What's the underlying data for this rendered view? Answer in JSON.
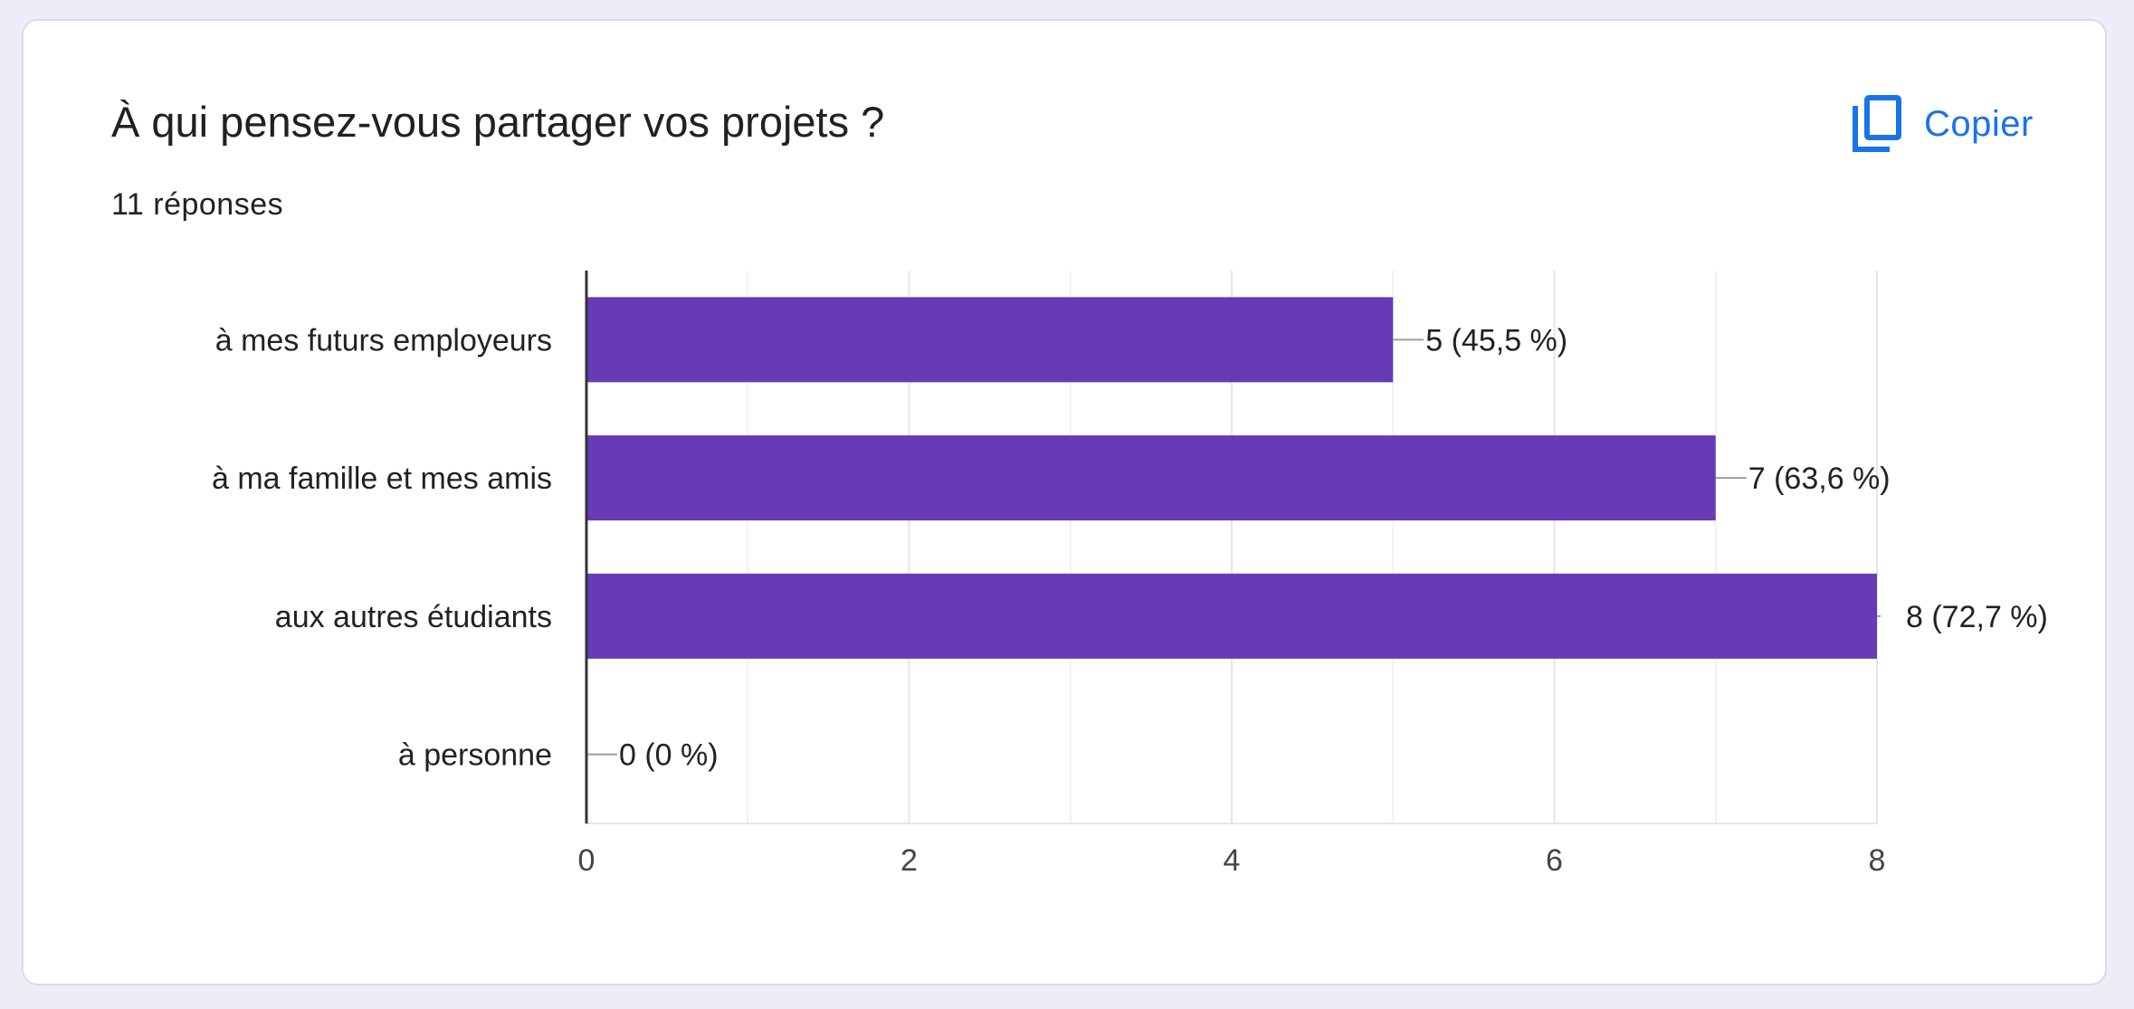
{
  "question": {
    "title": "À qui pensez-vous partager vos projets ?",
    "responses": "11 réponses"
  },
  "copy_button": {
    "label": "Copier",
    "icon": "copy-icon"
  },
  "colors": {
    "bar": "#673ab7",
    "accent": "#1a73e8",
    "background": "#efebf8"
  },
  "chart_data": {
    "type": "bar",
    "orientation": "horizontal",
    "categories": [
      "à mes futurs employeurs",
      "à ma famille et mes amis",
      "aux autres étudiants",
      "à personne"
    ],
    "values": [
      5,
      7,
      8,
      0
    ],
    "data_labels": [
      "5 (45,5 %)",
      "7 (63,6 %)",
      "8 (72,7 %)",
      "0 (0 %)"
    ],
    "x_ticks": [
      0,
      2,
      4,
      6,
      8
    ],
    "xlim": [
      0,
      8
    ],
    "grid": true,
    "minor_grid": true
  }
}
